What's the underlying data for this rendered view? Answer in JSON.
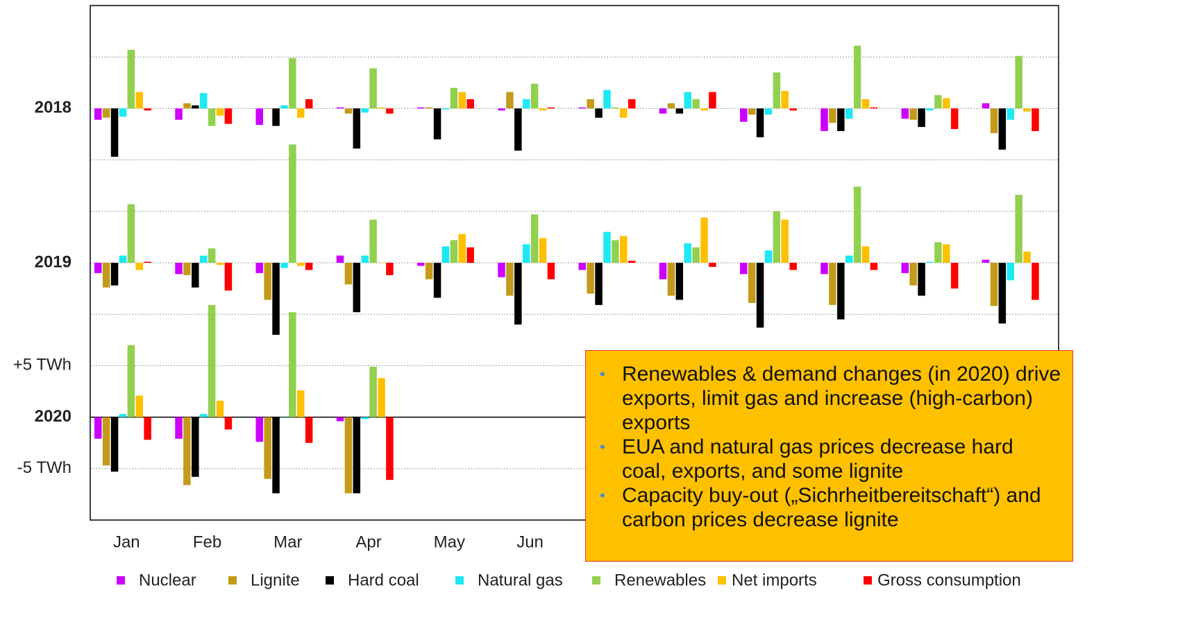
{
  "chart_data": {
    "type": "bar",
    "categories": [
      "Jan",
      "Feb",
      "Mar",
      "Apr",
      "May",
      "Jun",
      null,
      null,
      null,
      null,
      null,
      null
    ],
    "ylim": [
      -10,
      40
    ],
    "yticks": [
      {
        "value": -5,
        "label": "-5 TWh"
      },
      {
        "value": 0,
        "label": "2020"
      },
      {
        "value": 5,
        "label": "+5 TWh"
      },
      {
        "value": 15,
        "label": "2019"
      },
      {
        "value": 30,
        "label": "2018"
      }
    ],
    "minor_gridlines": [
      10,
      20,
      25,
      35
    ],
    "series": [
      {
        "name": "Nuclear",
        "color": "#cc00ff"
      },
      {
        "name": "Lignite",
        "color": "#c49a1a"
      },
      {
        "name": "Hard coal",
        "color": "#000000"
      },
      {
        "name": "Natural gas",
        "color": "#1de9f5"
      },
      {
        "name": "Renewables",
        "color": "#92d050"
      },
      {
        "name": "Net imports",
        "color": "#ffc000"
      },
      {
        "name": "Gross consumption",
        "color": "#ff0000"
      }
    ],
    "panels": [
      {
        "offset": 30,
        "values": [
          [
            -1.1,
            -1.1,
            -1.6,
            0.1,
            0.1,
            -0.2,
            0.1,
            -0.5,
            -1.3,
            -2.2,
            -1.0,
            0.5
          ],
          [
            -0.9,
            0.5,
            0,
            -0.5,
            0.1,
            1.6,
            0.9,
            0.5,
            -0.6,
            -1.4,
            -1.1,
            -2.4
          ],
          [
            -4.7,
            0.3,
            -1.7,
            -3.9,
            -3.0,
            -4.1,
            -0.9,
            -0.5,
            -2.8,
            -2.2,
            -1.8,
            -4.0
          ],
          [
            -0.8,
            1.5,
            0.3,
            -0.4,
            -0.1,
            0.9,
            1.8,
            1.6,
            -0.6,
            -1.0,
            -0.2,
            -1.1
          ],
          [
            5.7,
            -1.7,
            4.9,
            3.9,
            2.0,
            2.4,
            0.1,
            0.9,
            3.5,
            6.1,
            1.3,
            5.1
          ],
          [
            1.6,
            -0.7,
            -0.9,
            0.1,
            1.6,
            -0.2,
            -0.9,
            -0.2,
            1.7,
            0.9,
            1.0,
            -0.3
          ],
          [
            -0.2,
            -1.5,
            0.9,
            -0.5,
            0.9,
            0.1,
            0.9,
            1.6,
            -0.2,
            0.1,
            -2.0,
            -2.2
          ]
        ]
      },
      {
        "offset": 15,
        "values": [
          [
            -1.0,
            -1.1,
            -1.0,
            0.7,
            -0.3,
            -1.4,
            -0.7,
            -1.6,
            -1.1,
            -1.1,
            -1.0,
            0.3
          ],
          [
            -2.4,
            -1.2,
            -3.6,
            -2.1,
            -1.6,
            -3.2,
            -3.0,
            -3.2,
            -3.9,
            -4.1,
            -2.2,
            -4.2
          ],
          [
            -2.2,
            -2.4,
            -7.0,
            -4.8,
            -3.4,
            -6.0,
            -4.1,
            -3.6,
            -6.3,
            -5.5,
            -3.2,
            -5.9
          ],
          [
            0.7,
            0.7,
            -0.5,
            0.7,
            1.6,
            1.8,
            3.0,
            1.9,
            1.2,
            0.7,
            0.1,
            -1.7
          ],
          [
            5.7,
            1.4,
            11.5,
            4.2,
            2.2,
            4.7,
            2.2,
            1.5,
            5.0,
            7.4,
            2.0,
            6.6
          ],
          [
            -0.7,
            -0.2,
            -0.3,
            0,
            2.8,
            2.4,
            2.6,
            4.4,
            4.2,
            1.6,
            1.8,
            1.1
          ],
          [
            0.1,
            -2.7,
            -0.7,
            -1.2,
            1.5,
            -1.6,
            0.2,
            -0.4,
            -0.7,
            -0.7,
            -2.5,
            -3.6
          ]
        ]
      },
      {
        "offset": 0,
        "values": [
          [
            -2.1,
            -2.1,
            -2.4,
            -0.4,
            null,
            null,
            null,
            null,
            null,
            null,
            null,
            null
          ],
          [
            -4.7,
            -6.6,
            -6.0,
            -7.4,
            null,
            null,
            null,
            null,
            null,
            null,
            null,
            null
          ],
          [
            -5.3,
            -5.8,
            -7.4,
            -7.4,
            null,
            null,
            null,
            null,
            null,
            null,
            null,
            null
          ],
          [
            0.3,
            0.3,
            0,
            -0.2,
            null,
            null,
            null,
            null,
            null,
            null,
            null,
            null
          ],
          [
            7.0,
            10.9,
            10.2,
            4.9,
            null,
            null,
            null,
            null,
            null,
            null,
            null,
            null
          ],
          [
            2.1,
            1.6,
            2.6,
            3.8,
            null,
            null,
            null,
            null,
            null,
            null,
            null,
            null
          ],
          [
            -2.2,
            -1.2,
            -2.5,
            -6.1,
            null,
            null,
            null,
            null,
            null,
            null,
            null,
            null
          ]
        ]
      }
    ],
    "callout": {
      "bullets": [
        "Renewables & demand changes (in 2020) drive exports, limit gas and increase (high-carbon) exports",
        "EUA and natural gas prices decrease hard coal, exports, and some lignite",
        "Capacity buy-out („Sichrheitbereitschaft“) and carbon prices decrease lignite"
      ]
    }
  }
}
